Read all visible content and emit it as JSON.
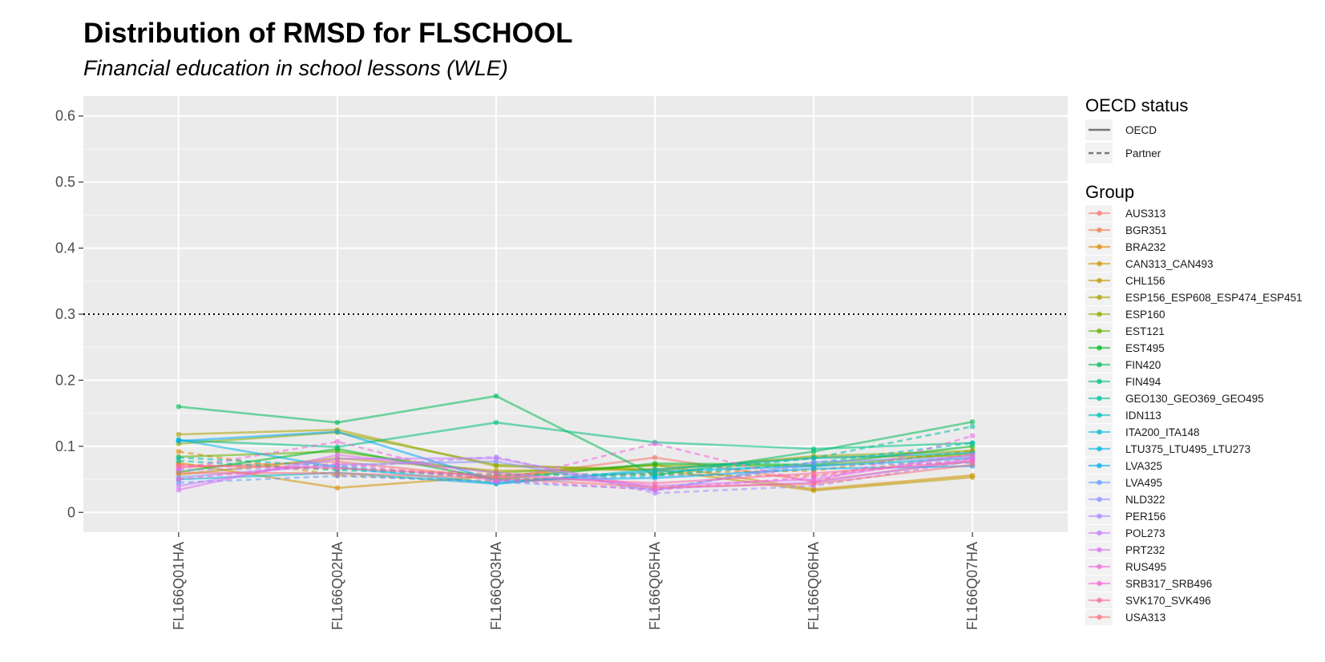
{
  "chart_data": {
    "type": "line",
    "title": "Distribution of RMSD for FLSCHOOL",
    "subtitle": "Financial education in school lessons (WLE)",
    "categories": [
      "FL166Q01HA",
      "FL166Q02HA",
      "FL166Q03HA",
      "FL166Q05HA",
      "FL166Q06HA",
      "FL166Q07HA"
    ],
    "y_ticks": [
      "0",
      "0.1",
      "0.2",
      "0.3",
      "0.4",
      "0.5",
      "0.6"
    ],
    "y_tick_values": [
      0,
      0.1,
      0.2,
      0.3,
      0.4,
      0.5,
      0.6
    ],
    "ylim": [
      -0.03,
      0.63
    ],
    "reference_line": 0.3,
    "grid": true,
    "legend_position": "right",
    "linetype_legend": {
      "title": "OECD status",
      "entries": [
        {
          "label": "OECD",
          "dash": "solid"
        },
        {
          "label": "Partner",
          "dash": "dashed"
        }
      ]
    },
    "group_legend_title": "Group",
    "series": [
      {
        "name": "AUS313",
        "color": "#F8766D",
        "dash": "solid",
        "values": [
          0.068,
          0.077,
          0.052,
          0.083,
          0.047,
          0.078
        ]
      },
      {
        "name": "BGR351",
        "color": "#EF7F49",
        "dash": "dashed",
        "values": [
          0.072,
          0.066,
          0.058,
          0.057,
          0.055,
          0.088
        ]
      },
      {
        "name": "BRA232",
        "color": "#E38900",
        "dash": "dashed",
        "values": [
          0.092,
          0.056,
          0.047,
          0.06,
          0.063,
          0.094
        ]
      },
      {
        "name": "CAN313_CAN493",
        "color": "#D49200",
        "dash": "solid",
        "values": [
          0.075,
          0.037,
          0.055,
          0.072,
          0.035,
          0.056
        ]
      },
      {
        "name": "CHL156",
        "color": "#C09B00",
        "dash": "solid",
        "values": [
          0.057,
          0.082,
          0.063,
          0.065,
          0.033,
          0.053
        ]
      },
      {
        "name": "ESP156_ESP608_ESP474_ESP451",
        "color": "#A9A400",
        "dash": "solid",
        "values": [
          0.118,
          0.125,
          0.07,
          0.065,
          0.083,
          0.086
        ]
      },
      {
        "name": "ESP160",
        "color": "#8DAB00",
        "dash": "solid",
        "values": [
          0.104,
          0.121,
          0.072,
          0.063,
          0.085,
          0.093
        ]
      },
      {
        "name": "EST121",
        "color": "#64B200",
        "dash": "solid",
        "values": [
          0.084,
          0.092,
          0.06,
          0.071,
          0.07,
          0.09
        ]
      },
      {
        "name": "EST495",
        "color": "#00B81F",
        "dash": "solid",
        "values": [
          0.061,
          0.096,
          0.05,
          0.074,
          0.072,
          0.1
        ]
      },
      {
        "name": "FIN420",
        "color": "#00BC59",
        "dash": "solid",
        "values": [
          0.16,
          0.136,
          0.176,
          0.056,
          0.092,
          0.137
        ]
      },
      {
        "name": "FIN494",
        "color": "#00BF7D",
        "dash": "solid",
        "values": [
          0.109,
          0.099,
          0.136,
          0.106,
          0.096,
          0.105
        ]
      },
      {
        "name": "GEO130_GEO369_GEO495",
        "color": "#00C19C",
        "dash": "dashed",
        "values": [
          0.078,
          0.064,
          0.056,
          0.058,
          0.082,
          0.13
        ]
      },
      {
        "name": "IDN113",
        "color": "#00C0B8",
        "dash": "dashed",
        "values": [
          0.083,
          0.07,
          0.05,
          0.055,
          0.075,
          0.105
        ]
      },
      {
        "name": "ITA200_ITA148",
        "color": "#00BCD1",
        "dash": "solid",
        "values": [
          0.05,
          0.06,
          0.043,
          0.065,
          0.082,
          0.09
        ]
      },
      {
        "name": "LTU375_LTU495_LTU273",
        "color": "#00B5E5",
        "dash": "solid",
        "values": [
          0.11,
          0.068,
          0.044,
          0.062,
          0.07,
          0.082
        ]
      },
      {
        "name": "LVA325",
        "color": "#00ABF5",
        "dash": "solid",
        "values": [
          0.108,
          0.122,
          0.048,
          0.052,
          0.066,
          0.07
        ]
      },
      {
        "name": "LVA495",
        "color": "#619CFF",
        "dash": "dashed",
        "values": [
          0.045,
          0.055,
          0.046,
          0.035,
          0.072,
          0.075
        ]
      },
      {
        "name": "NLD322",
        "color": "#8F91FF",
        "dash": "solid",
        "values": [
          0.053,
          0.072,
          0.077,
          0.033,
          0.076,
          0.084
        ]
      },
      {
        "name": "PER156",
        "color": "#AC88FF",
        "dash": "dashed",
        "values": [
          0.064,
          0.068,
          0.084,
          0.029,
          0.04,
          0.078
        ]
      },
      {
        "name": "POL273",
        "color": "#C77CFF",
        "dash": "solid",
        "values": [
          0.04,
          0.081,
          0.082,
          0.036,
          0.045,
          0.081
        ]
      },
      {
        "name": "PRT232",
        "color": "#E070F5",
        "dash": "solid",
        "values": [
          0.034,
          0.087,
          0.06,
          0.04,
          0.05,
          0.088
        ]
      },
      {
        "name": "RUS495",
        "color": "#F066E1",
        "dash": "dashed",
        "values": [
          0.066,
          0.107,
          0.046,
          0.104,
          0.045,
          0.116
        ]
      },
      {
        "name": "SRB317_SRB496",
        "color": "#FB61D7",
        "dash": "dashed",
        "values": [
          0.05,
          0.074,
          0.049,
          0.034,
          0.054,
          0.082
        ]
      },
      {
        "name": "SVK170_SVK496",
        "color": "#FF67A4",
        "dash": "solid",
        "values": [
          0.071,
          0.067,
          0.055,
          0.044,
          0.059,
          0.077
        ]
      },
      {
        "name": "USA313",
        "color": "#FC717F",
        "dash": "solid",
        "values": [
          0.06,
          0.059,
          0.052,
          0.038,
          0.043,
          0.072
        ]
      }
    ]
  }
}
